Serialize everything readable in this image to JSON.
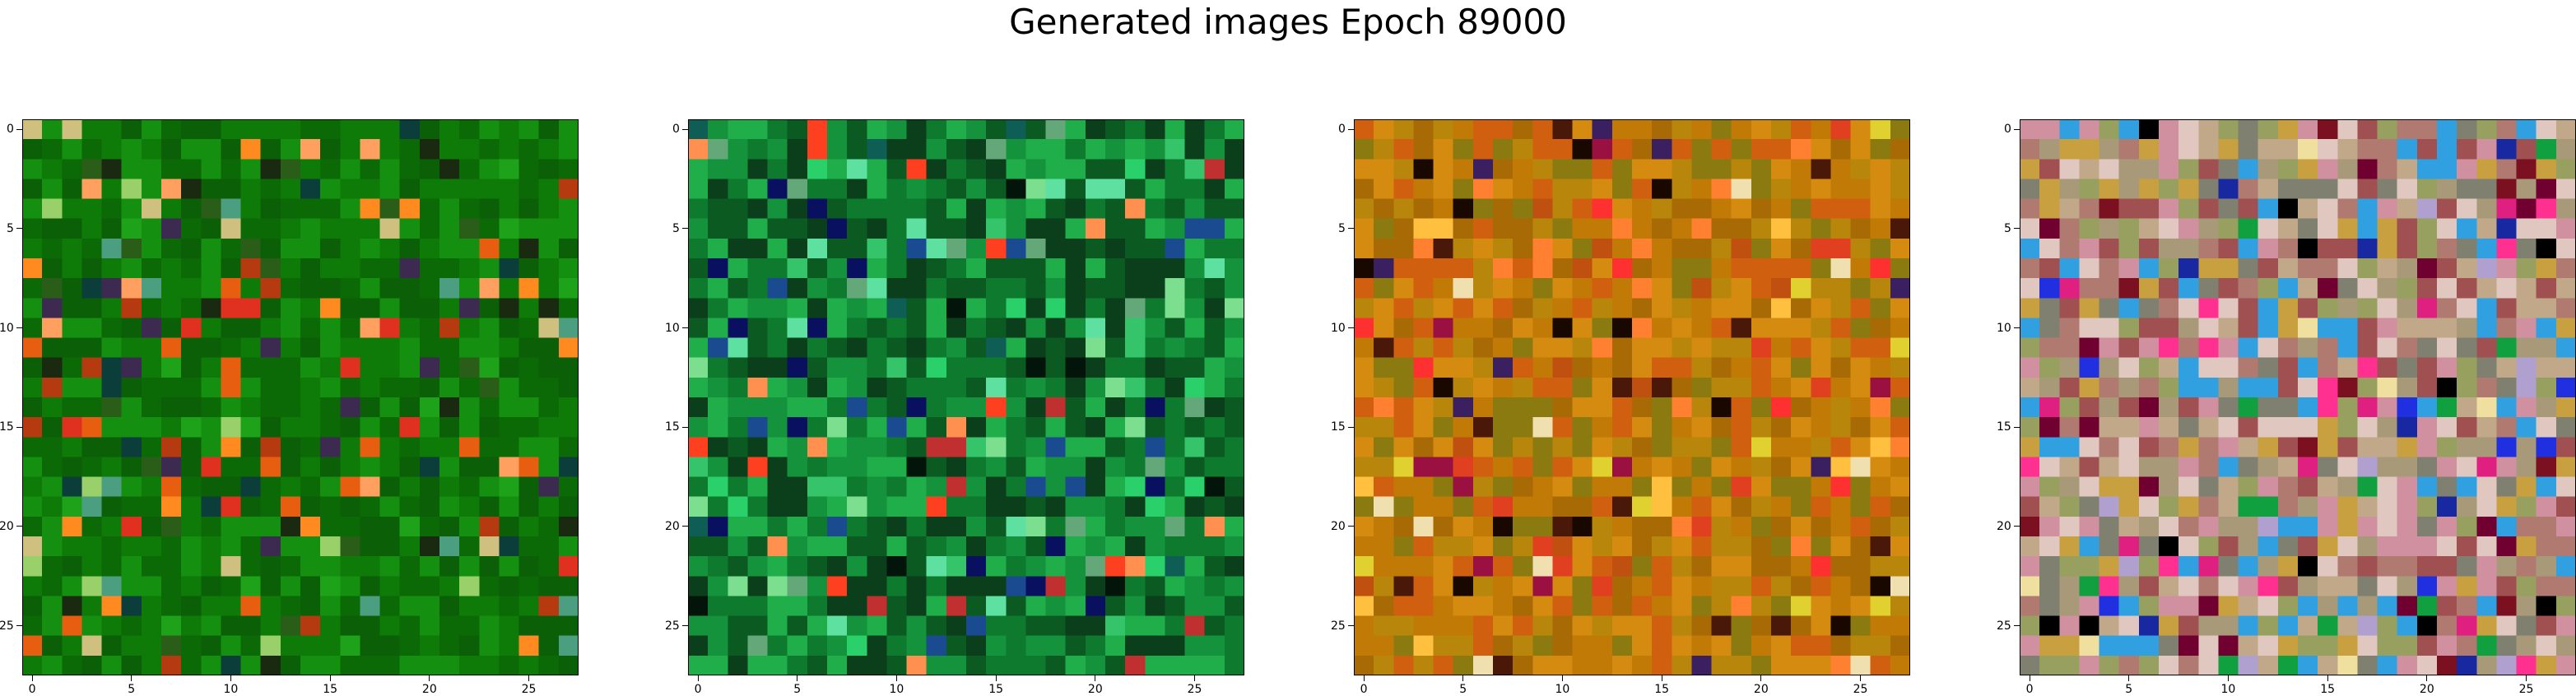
{
  "title": "Generated images Epoch 89000",
  "chart_data": [
    {
      "type": "heatmap",
      "palette": [
        "#0b5f06",
        "#0e7a08",
        "#148f10",
        "#0b6a06",
        "#1ea21a",
        "#2a5d18",
        "#e85e10",
        "#ff8a20",
        "#b53a10",
        "#4c9e80",
        "#0b3d3a",
        "#e03020",
        "#ffa060",
        "#9ad06a",
        "#1a2a10",
        "#d0c080",
        "#3d2a50"
      ],
      "base": [
        0,
        1,
        2,
        3
      ],
      "xticks": [
        0,
        5,
        10,
        15,
        20,
        25
      ],
      "yticks": [
        0,
        5,
        10,
        15,
        20,
        25
      ],
      "xlim": [
        0,
        27
      ],
      "ylim": [
        27,
        0
      ]
    },
    {
      "type": "heatmap",
      "palette": [
        "#0d7a2e",
        "#14933c",
        "#0a5a22",
        "#1fae4a",
        "#36c46a",
        "#0b3e1a",
        "#2ad06a",
        "#5ee0a0",
        "#0e5e56",
        "#03150a",
        "#0a1060",
        "#ff4020",
        "#ff9050",
        "#c03030",
        "#64a87a",
        "#7cdf90",
        "#1a4a90"
      ],
      "base": [
        0,
        1,
        2,
        3,
        5
      ],
      "xticks": [
        0,
        5,
        10,
        15,
        20,
        25
      ],
      "yticks": [
        0,
        5,
        10,
        15,
        20,
        25
      ],
      "xlim": [
        0,
        27
      ],
      "ylim": [
        27,
        0
      ]
    },
    {
      "type": "heatmap",
      "palette": [
        "#c07a05",
        "#d58a10",
        "#a86a05",
        "#b8860b",
        "#8a7a10",
        "#d06010",
        "#c05010",
        "#e04020",
        "#ff3030",
        "#ff8030",
        "#ffc040",
        "#e0d030",
        "#4a1808",
        "#180800",
        "#f0e0b0",
        "#3a2060",
        "#9a1040"
      ],
      "base": [
        0,
        1,
        2,
        3,
        4,
        5
      ],
      "xticks": [
        0,
        5,
        10,
        15,
        20,
        25
      ],
      "yticks": [
        0,
        5,
        10,
        15,
        20,
        25
      ],
      "xlim": [
        0,
        27
      ],
      "ylim": [
        27,
        0
      ]
    },
    {
      "type": "heatmap",
      "palette": [
        "#a89a78",
        "#c0a888",
        "#b07a70",
        "#98a060",
        "#d090a0",
        "#a05050",
        "#808070",
        "#e0c8c0",
        "#e02080",
        "#ff3090",
        "#2030e0",
        "#1828a0",
        "#000000",
        "#10a040",
        "#30a0e0",
        "#7a1020",
        "#c8a040",
        "#f0e0a0",
        "#b0a0d0",
        "#700030"
      ],
      "base": [
        0,
        1,
        2,
        3,
        4,
        5,
        6,
        7,
        14,
        16
      ],
      "xticks": [
        0,
        5,
        10,
        15,
        20,
        25
      ],
      "yticks": [
        0,
        5,
        10,
        15,
        20,
        25
      ],
      "xlim": [
        0,
        27
      ],
      "ylim": [
        27,
        0
      ]
    }
  ]
}
